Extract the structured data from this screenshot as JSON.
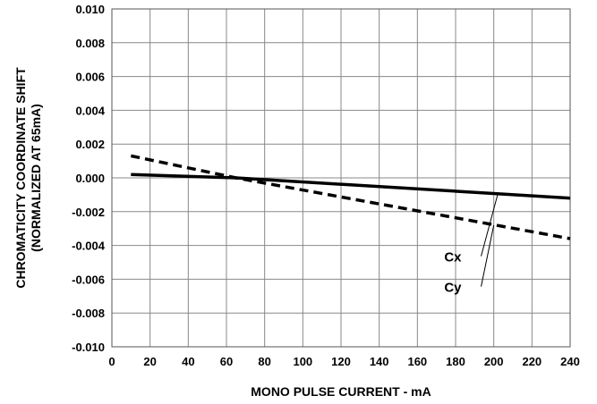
{
  "chart_data": {
    "type": "line",
    "title": "",
    "xlabel": "MONO PULSE CURRENT - mA",
    "ylabel": [
      "CHROMATICITY COORDINATE SHIFT",
      "(NORMALIZED AT 65mA)"
    ],
    "xlim": [
      0,
      240
    ],
    "ylim": [
      -0.01,
      0.01
    ],
    "xticks": [
      0,
      20,
      40,
      60,
      80,
      100,
      120,
      140,
      160,
      180,
      200,
      220,
      240
    ],
    "yticks": [
      0.01,
      0.008,
      0.006,
      0.004,
      0.002,
      0.0,
      -0.002,
      -0.004,
      -0.006,
      -0.008,
      -0.01
    ],
    "xtick_labels": [
      "0",
      "20",
      "40",
      "60",
      "80",
      "100",
      "120",
      "140",
      "160",
      "180",
      "200",
      "220",
      "240"
    ],
    "ytick_labels": [
      "0.010",
      "0.008",
      "0.006",
      "0.004",
      "0.002",
      "0.000",
      "-0.002",
      "-0.004",
      "-0.006",
      "-0.008",
      "-0.010"
    ],
    "grid": true,
    "series": [
      {
        "name": "Cx",
        "line_style": "solid",
        "color": "#000000",
        "x": [
          10,
          65,
          240
        ],
        "y": [
          0.0002,
          0.0,
          -0.0012
        ],
        "label_anchor": {
          "x": 202,
          "y": -0.001
        },
        "label_at": {
          "x": 184,
          "y": -0.0049
        }
      },
      {
        "name": "Cy",
        "line_style": "dashed",
        "color": "#000000",
        "x": [
          10,
          65,
          240
        ],
        "y": [
          0.0013,
          0.0,
          -0.0036
        ],
        "label_anchor": {
          "x": 200,
          "y": -0.0028
        },
        "label_at": {
          "x": 184,
          "y": -0.0067
        }
      }
    ]
  }
}
